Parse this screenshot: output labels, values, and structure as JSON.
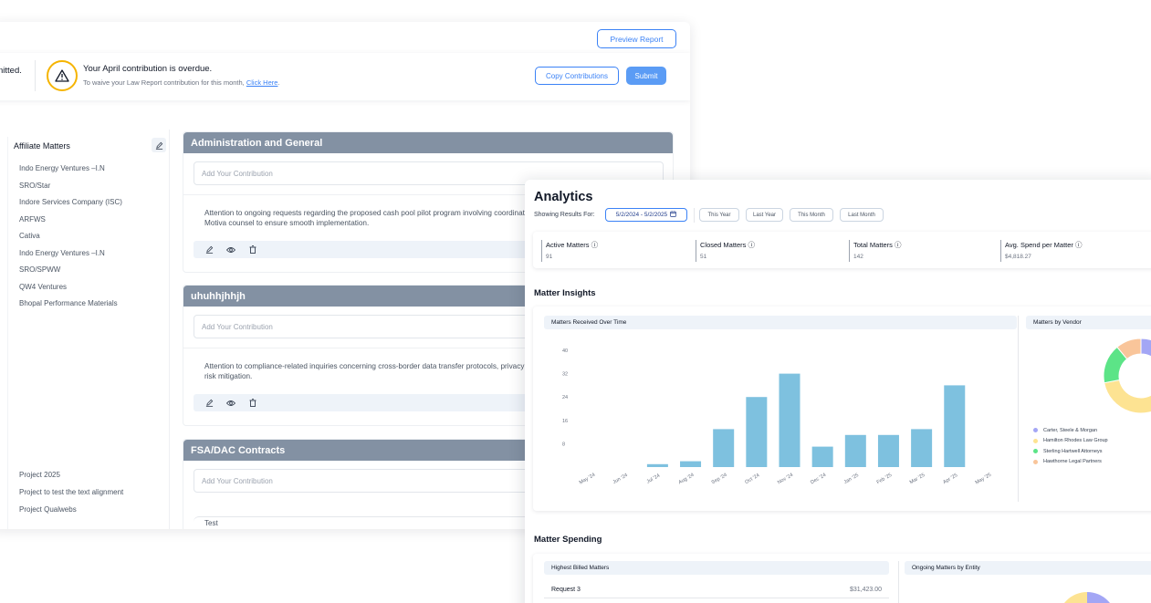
{
  "contributions": {
    "preview_button": "Preview Report",
    "alert": {
      "truncated_text": "nitted.",
      "title": "Your April contribution is overdue.",
      "subtitle_prefix": "To waive your Law Report contribution for this month, ",
      "subtitle_link": "Click Here",
      "subtitle_suffix": "."
    },
    "copy_button": "Copy Contributions",
    "submit_button": "Submit",
    "sidebar": {
      "title": "Affiliate Matters",
      "items": [
        "Indo Energy Ventures –I.N",
        "SRO/Star",
        "Indore Services Company (ISC)",
        "ARFWS",
        "Cativa",
        "Indo Energy Ventures –I.N",
        "SRO/SPWW",
        "QW4 Ventures",
        "Bhopal Performance Materials"
      ],
      "items_bottom": [
        "Project 2025",
        "Project to test the text alignment",
        "Project Qualwebs"
      ]
    },
    "blocks": [
      {
        "title": "Administration and General",
        "placeholder": "Add Your Contribution",
        "text": "Attention to ongoing requests regarding the proposed cash pool pilot program involving coordinating efforts between outside counsel and Motiva counsel to ensure smooth implementation."
      },
      {
        "title": "uhuhhjhhjh",
        "placeholder": "Add Your Contribution",
        "text": "Attention to compliance-related inquiries concerning cross-border data transfer protocols, privacy teams and external legal advisors for risk mitigation."
      },
      {
        "title": "FSA/DAC Contracts",
        "placeholder": "Add Your Contribution",
        "text": "Test"
      }
    ]
  },
  "analytics": {
    "title": "Analytics",
    "showing_label": "Showing Results For:",
    "date_range": "5/2/2024 - 5/2/2025",
    "range_buttons": [
      "This Year",
      "Last Year",
      "This Month",
      "Last Month"
    ],
    "stats": [
      {
        "label": "Active Matters",
        "value": "91"
      },
      {
        "label": "Closed Matters",
        "value": "51"
      },
      {
        "label": "Total Matters",
        "value": "142"
      },
      {
        "label": "Avg. Spend per Matter",
        "value": "$4,818.27"
      }
    ],
    "insights_title": "Matter Insights",
    "chart_title": "Matters Received Over Time",
    "vendor_title": "Matters by Vendor",
    "spending_title": "Matter Spending",
    "highest_billed_title": "Highest Billed Matters",
    "entity_title": "Ongoing Matters by Entity",
    "highest_billed_rows": [
      {
        "name": "Request 3",
        "amount": "$31,423.00"
      }
    ]
  },
  "chart_data": [
    {
      "type": "bar",
      "title": "Matters Received Over Time",
      "categories": [
        "May '24",
        "Jun '24",
        "Jul '24",
        "Aug '24",
        "Sep '24",
        "Oct '24",
        "Nov '24",
        "Dec '24",
        "Jan '25",
        "Feb '25",
        "Mar '25",
        "Apr '25",
        "May '25"
      ],
      "values": [
        0,
        0,
        1,
        2,
        13,
        24,
        32,
        7,
        11,
        11,
        13,
        28,
        0
      ],
      "yticks": [
        8,
        16,
        24,
        32,
        40
      ],
      "ylim": [
        0,
        40
      ],
      "color": "#7ec1df"
    },
    {
      "type": "pie",
      "title": "Matters by Vendor",
      "labels": [
        "Carter, Steele & Morgan",
        "Hamilton Rhodes Law Group",
        "Sterling Hartwell Attorneys",
        "Hawthorne Legal Partners"
      ],
      "values": [
        38,
        34,
        17,
        11
      ],
      "colors": [
        "#a3a6f5",
        "#fde392",
        "#5ce487",
        "#f9c59a"
      ]
    }
  ]
}
